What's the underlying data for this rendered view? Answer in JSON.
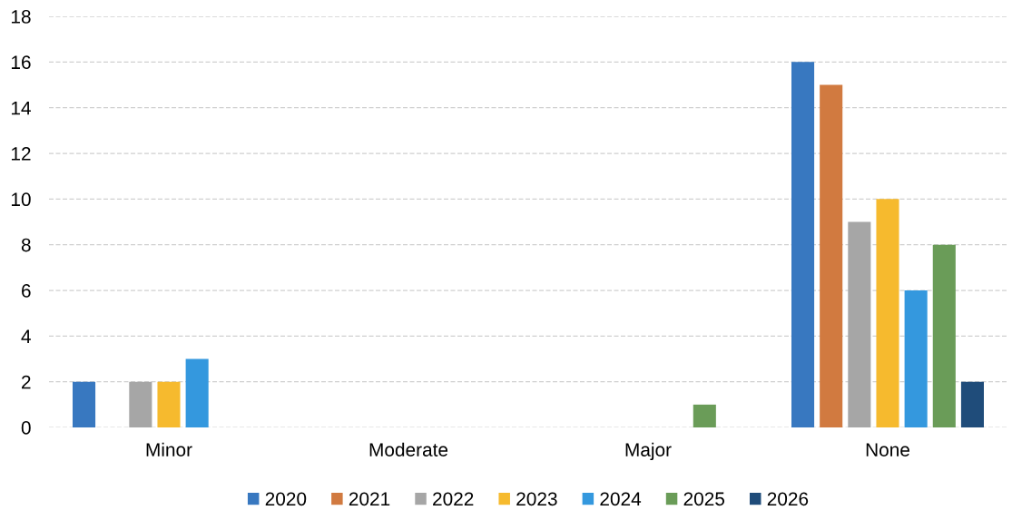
{
  "chart_data": {
    "type": "bar",
    "categories": [
      "Minor",
      "Moderate",
      "Major",
      "None"
    ],
    "series": [
      {
        "name": "2020",
        "color": "#3878c0",
        "values": [
          2,
          0,
          0,
          16
        ]
      },
      {
        "name": "2021",
        "color": "#d17a40",
        "values": [
          0,
          0,
          0,
          15
        ]
      },
      {
        "name": "2022",
        "color": "#a6a6a6",
        "values": [
          2,
          0,
          0,
          9
        ]
      },
      {
        "name": "2023",
        "color": "#f6ba2e",
        "values": [
          2,
          0,
          0,
          10
        ]
      },
      {
        "name": "2024",
        "color": "#3498de",
        "values": [
          3,
          0,
          0,
          6
        ]
      },
      {
        "name": "2025",
        "color": "#6a9c58",
        "values": [
          0,
          0,
          1,
          8
        ]
      },
      {
        "name": "2026",
        "color": "#1f4c7a",
        "values": [
          0,
          0,
          0,
          2
        ]
      }
    ],
    "ylim": [
      0,
      18
    ],
    "yticks": [
      0,
      2,
      4,
      6,
      8,
      10,
      12,
      14,
      16,
      18
    ],
    "grid": "y",
    "legend": "bottom"
  }
}
